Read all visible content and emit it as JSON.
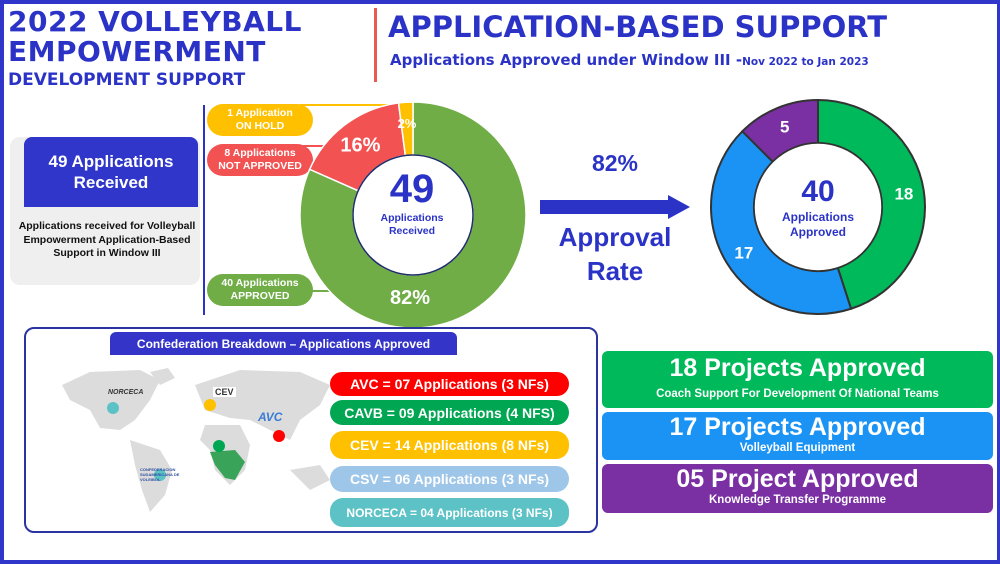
{
  "header": {
    "title_line1": "2022 VOLLEYBALL",
    "title_line2": "EMPOWERMENT",
    "title_line3": "DEVELOPMENT SUPPORT",
    "main_title": "APPLICATION-BASED SUPPORT",
    "subtitle": "Applications Approved under Window III -",
    "subtitle_dates": "Nov 2022 to Jan 2023"
  },
  "summary": {
    "received_heading_1": "49 Applications",
    "received_heading_2": "Received",
    "description": "Applications received for Volleyball Empowerment Application-Based Support in Window III"
  },
  "labels": {
    "on_hold_1": "1 Application",
    "on_hold_2": "ON HOLD",
    "not_approved_1": "8 Applications",
    "not_approved_2": "NOT APPROVED",
    "approved_1": "40 Applications",
    "approved_2": "APPROVED"
  },
  "approval": {
    "rate": "82%",
    "label_1": "Approval",
    "label_2": "Rate"
  },
  "chart_data": [
    {
      "type": "pie",
      "title": "Applications Received",
      "center_value": "49",
      "center_label": "Applications Received",
      "slices": [
        {
          "name": "Approved",
          "value": 40,
          "label": "82%",
          "color": "#70ad47"
        },
        {
          "name": "Not Approved",
          "value": 8,
          "label": "16%",
          "color": "#f25252"
        },
        {
          "name": "On Hold",
          "value": 1,
          "label": "2%",
          "color": "#ffc000"
        }
      ]
    },
    {
      "type": "pie",
      "title": "Applications Approved",
      "center_value": "40",
      "center_label": "Applications Approved",
      "slices": [
        {
          "name": "Coach Support",
          "value": 18,
          "label": "18",
          "color": "#00b95a"
        },
        {
          "name": "Volleyball Equipment",
          "value": 17,
          "label": "17",
          "color": "#1a93f5"
        },
        {
          "name": "Knowledge Transfer",
          "value": 5,
          "label": "5",
          "color": "#7a2fa3"
        }
      ]
    }
  ],
  "confederation": {
    "title": "Confederation Breakdown – Applications Approved",
    "items": [
      {
        "text": "AVC = 07 Applications (3 NFs)",
        "color": "#ff0000"
      },
      {
        "text": "CAVB = 09 Applications (4 NFS)",
        "color": "#00a651"
      },
      {
        "text": "CEV = 14 Applications (8 NFs)",
        "color": "#ffc000"
      },
      {
        "text": "CSV = 06 Applications (3 NFs)",
        "color": "#9dc6e8"
      },
      {
        "text": "NORCECA = 04 Applications (3 NFs)",
        "color": "#5cc2c6"
      }
    ],
    "logos": {
      "norceca": "NORCECA",
      "cev": "CEV",
      "avc": "AVC",
      "csv": "CONFEDERACION SUDAMERICANA DE VOLEIBOL"
    }
  },
  "projects": [
    {
      "title": "18 Projects Approved",
      "subtitle": "Coach Support For Development Of National Teams",
      "color": "#00b95a"
    },
    {
      "title": "17 Projects Approved",
      "subtitle": "Volleyball Equipment",
      "color": "#1a93f5"
    },
    {
      "title": "05 Project Approved",
      "subtitle": "Knowledge Transfer Programme",
      "color": "#7a2fa3"
    }
  ]
}
